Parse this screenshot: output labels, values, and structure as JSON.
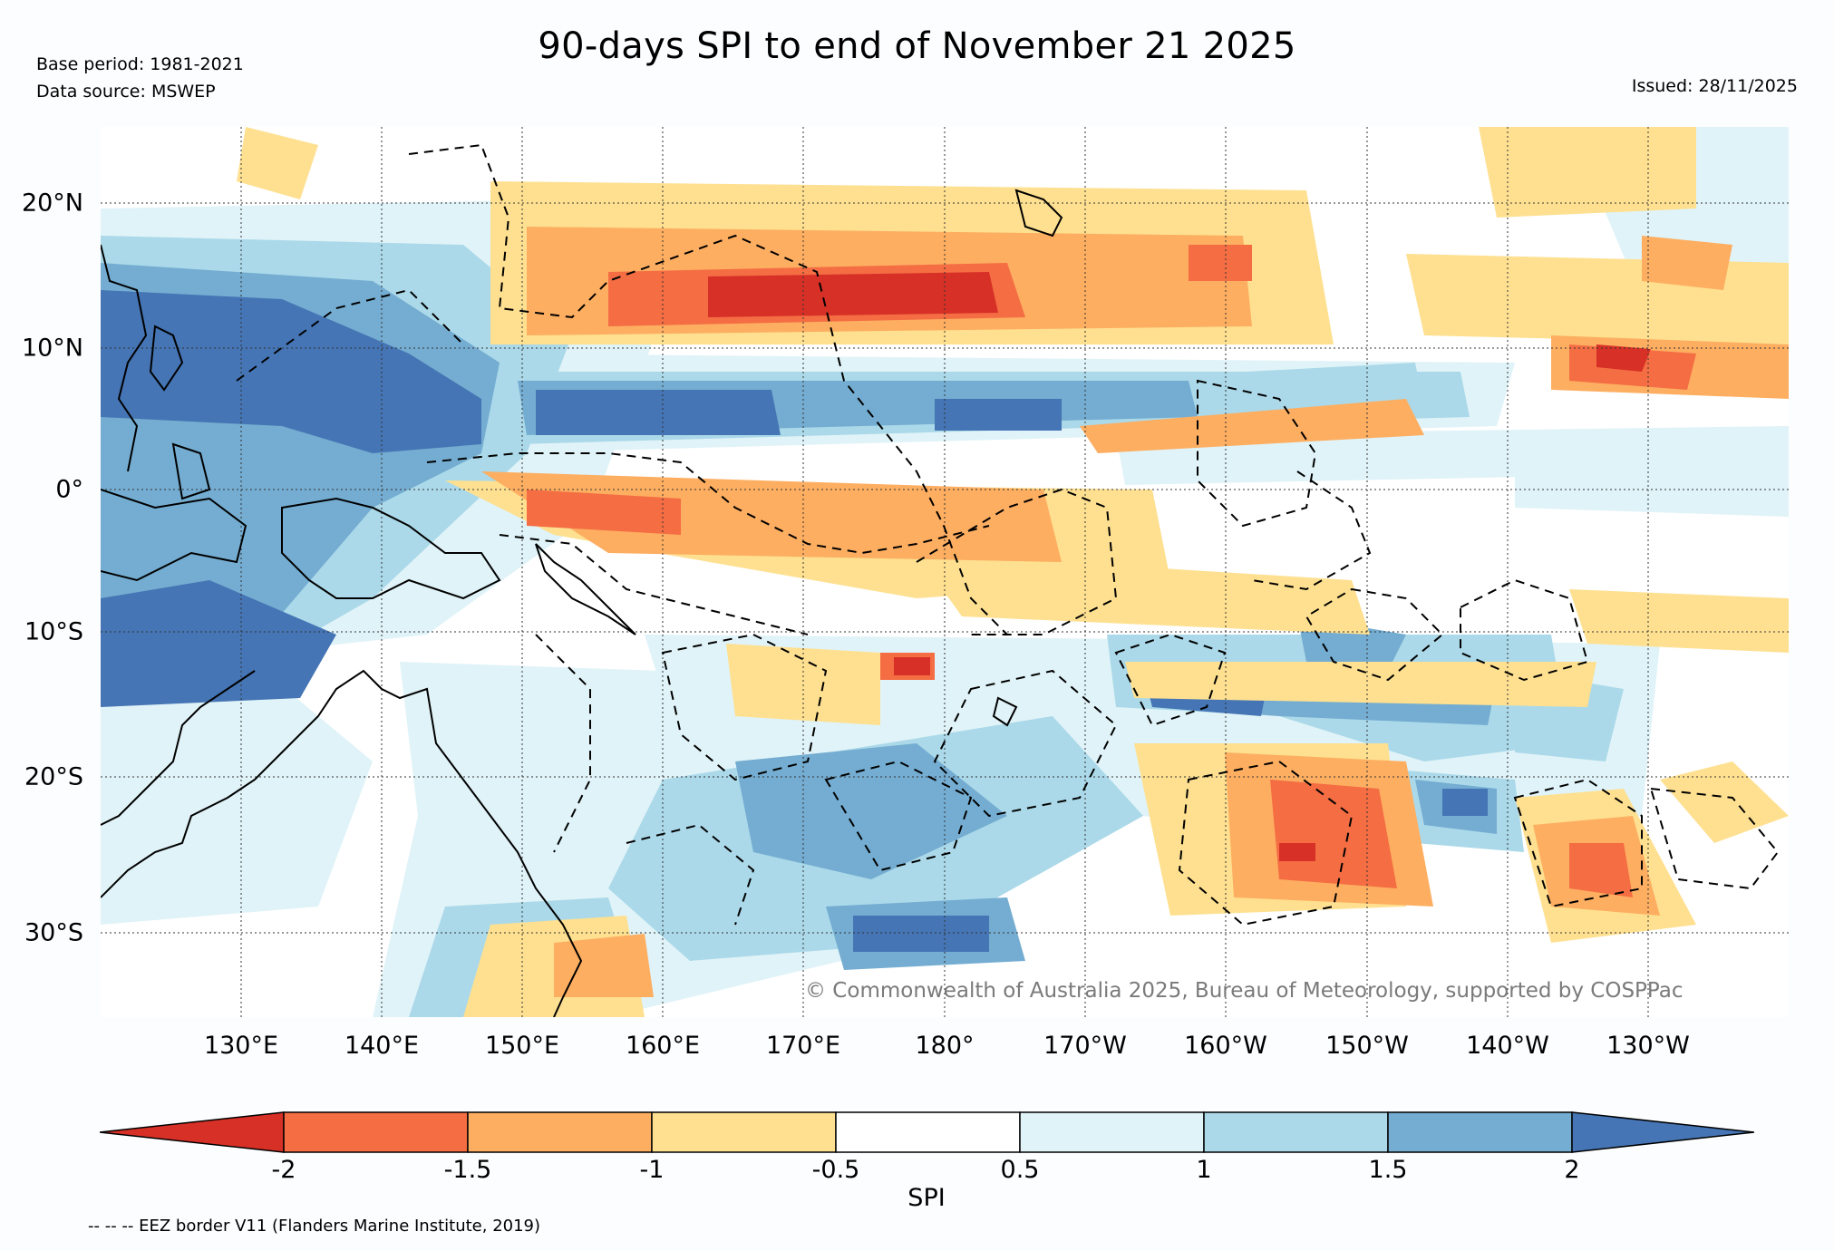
{
  "header": {
    "title": "90-days SPI to end of November 21 2025",
    "base_period": "Base period: 1981-2021",
    "data_source": "Data source: MSWEP",
    "issued": "Issued: 28/11/2025"
  },
  "map": {
    "latitude_labels": [
      "20°N",
      "10°N",
      "0°",
      "10°S",
      "20°S",
      "30°S"
    ],
    "longitude_labels": [
      "130°E",
      "140°E",
      "150°E",
      "160°E",
      "170°E",
      "180°",
      "170°W",
      "160°W",
      "150°W",
      "140°W",
      "130°W"
    ],
    "copyright": "© Commonwealth of Australia 2025, Bureau of Meteorology, supported by COSPPac",
    "land_color": "#000000",
    "eez_color": "#000000"
  },
  "colorbar": {
    "title": "SPI",
    "tick_labels": [
      "-2",
      "-1.5",
      "-1",
      "-0.5",
      "0.5",
      "1",
      "1.5",
      "2"
    ],
    "colors": [
      "#d73027",
      "#f46d43",
      "#fdae61",
      "#fee090",
      "#ffffff",
      "#e0f3f8",
      "#abd9e9",
      "#74add1",
      "#4575b4"
    ]
  },
  "footer": {
    "note": "-- -- -- EEZ border V11 (Flanders Marine Institute, 2019)"
  }
}
